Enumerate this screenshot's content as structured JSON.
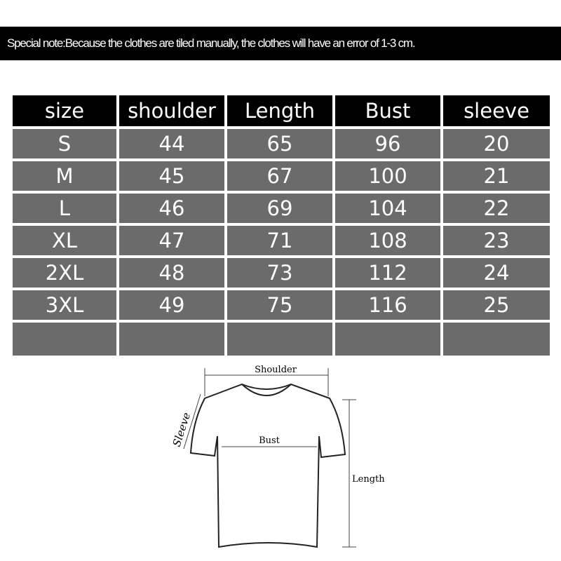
{
  "note": "Special note:Because the clothes are tiled manually, the clothes will have an error of 1-3 cm.",
  "table": {
    "header": [
      "size",
      "shoulder",
      "Length",
      "Bust",
      "sleeve"
    ],
    "rows": [
      [
        "S",
        44,
        65,
        96,
        20
      ],
      [
        "M",
        45,
        67,
        100,
        21
      ],
      [
        "L",
        46,
        69,
        104,
        22
      ],
      [
        "XL",
        47,
        71,
        108,
        23
      ],
      [
        "2XL",
        48,
        73,
        112,
        24
      ],
      [
        "3XL",
        49,
        75,
        116,
        25
      ]
    ]
  },
  "diagram": {
    "shoulder": "Shoulder",
    "bust": "Bust",
    "length": "Length",
    "sleeve": "Sleeve"
  }
}
